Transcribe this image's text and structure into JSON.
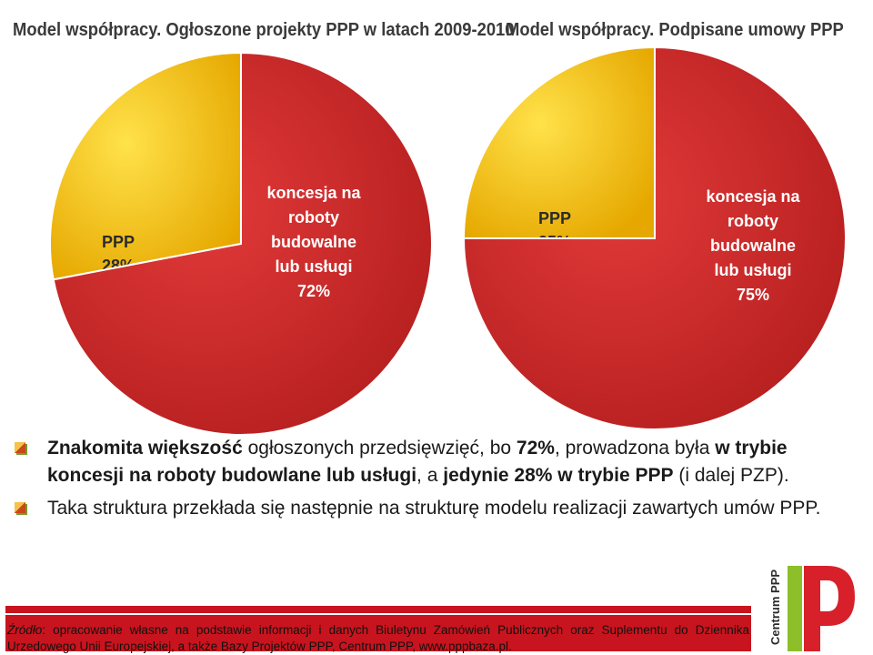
{
  "chart_data": [
    {
      "type": "pie",
      "title": "Model współpracy. Ogłoszone projekty PPP w latach 2009-2010",
      "slices": [
        {
          "label_lines": [
            "PPP",
            "28%"
          ],
          "value": 28,
          "color": "#f2c21a"
        },
        {
          "label_lines": [
            "koncesja na",
            "roboty",
            "budowalne",
            "lub usługi",
            "72%"
          ],
          "value": 72,
          "color": "#d12a2a"
        }
      ]
    },
    {
      "type": "pie",
      "title": "Model  współpracy.  Podpisane  umowy PPP",
      "slices": [
        {
          "label_lines": [
            "PPP",
            "25%"
          ],
          "value": 25,
          "color": "#f2c21a"
        },
        {
          "label_lines": [
            "koncesja na",
            "roboty",
            "budowalne",
            "lub usługi",
            "75%"
          ],
          "value": 75,
          "color": "#d12a2a"
        }
      ]
    }
  ],
  "bullets": [
    {
      "parts": [
        {
          "text": "Znakomita większość",
          "bold": true
        },
        {
          "text": " ogłoszonych przedsięwzięć, bo ",
          "bold": false
        },
        {
          "text": "72%",
          "bold": true
        },
        {
          "text": ", prowadzona była ",
          "bold": false
        },
        {
          "text": "w trybie koncesji na roboty budowlane lub usługi",
          "bold": true
        },
        {
          "text": ", a ",
          "bold": false
        },
        {
          "text": "jedynie 28% w trybie PPP",
          "bold": true
        },
        {
          "text": " (i dalej PZP).",
          "bold": false
        }
      ]
    },
    {
      "parts": [
        {
          "text": "Taka struktura przekłada się następnie na strukturę modelu realizacji zawartych umów PPP.",
          "bold": false
        }
      ]
    }
  ],
  "footer": {
    "source_label": "Źródło",
    "text": ": opracowanie własne na podstawie informacji i danych Biuletynu Zamówień Publicznych oraz Suplementu do Dziennika Urzedowego Unii Europejskiej, a także Bazy Projektów PPP, Centrum PPP, www.pppbaza.pl."
  },
  "logo": {
    "text": "Centrum PPP",
    "letter": "P",
    "colors": {
      "green": "#8cbf2a",
      "red": "#d8202a"
    }
  }
}
